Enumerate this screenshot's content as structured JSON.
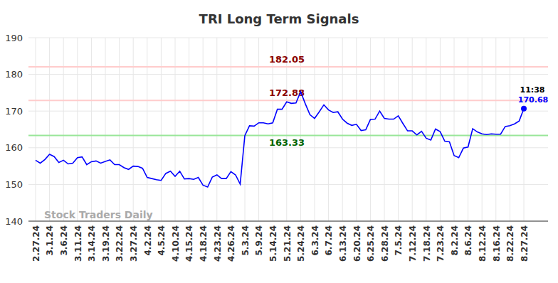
{
  "chart_data": {
    "type": "line",
    "title": "TRI Long Term Signals",
    "watermark": "Stock Traders Daily",
    "categories": [
      "2.27.24",
      null,
      null,
      "3.1.24",
      null,
      null,
      "3.6.24",
      null,
      null,
      "3.11.24",
      null,
      null,
      "3.14.24",
      null,
      null,
      "3.19.24",
      null,
      null,
      "3.22.24",
      null,
      null,
      "3.27.24",
      null,
      null,
      "4.2.24",
      null,
      null,
      "4.5.24",
      null,
      null,
      "4.10.24",
      null,
      null,
      "4.15.24",
      null,
      null,
      "4.18.24",
      null,
      null,
      "4.23.24",
      null,
      null,
      "4.26.24",
      null,
      null,
      "5.3.24",
      null,
      null,
      "5.9.24",
      null,
      null,
      "5.14.24",
      null,
      null,
      "5.21.24",
      null,
      null,
      "5.24.24",
      null,
      null,
      "6.3.24",
      null,
      null,
      "6.7.24",
      null,
      null,
      "6.13.24",
      null,
      null,
      "6.20.24",
      null,
      null,
      "6.25.24",
      null,
      null,
      "6.28.24",
      null,
      null,
      "7.5.24",
      null,
      null,
      "7.12.24",
      null,
      null,
      "7.18.24",
      null,
      null,
      "7.23.24",
      null,
      null,
      "8.2.24",
      null,
      null,
      "8.6.24",
      null,
      null,
      "8.12.24",
      null,
      null,
      "8.16.24",
      null,
      null,
      "8.22.24",
      null,
      null,
      "8.27.24"
    ],
    "series": [
      {
        "name": "TRI",
        "color": "#0000ff",
        "values": [
          156.6,
          155.8,
          156.8,
          158.2,
          157.6,
          156.0,
          156.6,
          155.6,
          155.8,
          157.3,
          157.5,
          155.4,
          156.2,
          156.4,
          155.8,
          156.3,
          156.7,
          155.4,
          155.4,
          154.6,
          154.1,
          155.0,
          154.9,
          154.4,
          151.9,
          151.6,
          151.3,
          151.1,
          153.0,
          153.6,
          152.2,
          153.6,
          151.5,
          151.6,
          151.4,
          151.9,
          149.8,
          149.3,
          152.0,
          152.6,
          151.6,
          151.6,
          153.5,
          152.6,
          150.1,
          163.3,
          166.0,
          165.9,
          166.8,
          166.8,
          166.5,
          166.8,
          170.5,
          170.5,
          172.5,
          172.1,
          172.2,
          175.3,
          172.0,
          169.0,
          168.0,
          169.8,
          171.7,
          170.3,
          169.6,
          169.8,
          167.8,
          166.7,
          166.1,
          166.4,
          164.7,
          164.9,
          167.7,
          167.8,
          170.0,
          168.0,
          167.8,
          167.8,
          168.7,
          166.6,
          164.6,
          164.6,
          163.5,
          164.5,
          162.6,
          162.1,
          165.1,
          164.4,
          161.8,
          161.6,
          157.9,
          157.3,
          159.9,
          160.2,
          165.2,
          164.3,
          163.8,
          163.6,
          163.8,
          163.7,
          163.7,
          165.8,
          166.0,
          166.5,
          167.3,
          170.68
        ]
      }
    ],
    "ylim": [
      140,
      190
    ],
    "yticks": [
      140,
      150,
      160,
      170,
      180,
      190
    ],
    "grid": true,
    "reference_lines": [
      {
        "value": 182.05,
        "label": "182.05",
        "color": "#ffcccc"
      },
      {
        "value": 172.88,
        "label": "172.88",
        "color": "#ffcccc"
      },
      {
        "value": 163.33,
        "label": "163.33",
        "color": "#99e699"
      }
    ],
    "annotations": [
      {
        "text": "11:38"
      },
      {
        "text": "170.68"
      }
    ]
  }
}
